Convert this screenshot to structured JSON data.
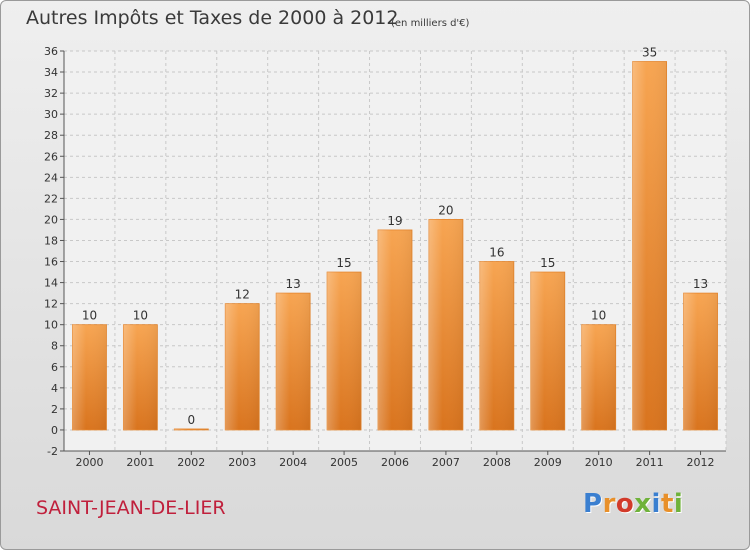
{
  "chart_data": {
    "type": "bar",
    "title": "Autres Impôts et Taxes de 2000 à 2012",
    "subtitle": "(en milliers d'€)",
    "categories": [
      "2000",
      "2001",
      "2002",
      "2003",
      "2004",
      "2005",
      "2006",
      "2007",
      "2008",
      "2009",
      "2010",
      "2011",
      "2012"
    ],
    "values": [
      10,
      10,
      0,
      12,
      13,
      15,
      19,
      20,
      16,
      15,
      10,
      35,
      13
    ],
    "ylim": [
      -2,
      36
    ],
    "yticks": [
      -2,
      0,
      2,
      4,
      6,
      8,
      10,
      12,
      14,
      16,
      18,
      20,
      22,
      24,
      26,
      28,
      30,
      32,
      34,
      36
    ],
    "grid": true,
    "bar_color": "#f0943a"
  },
  "footer": {
    "commune": "SAINT-JEAN-DE-LIER",
    "logo_letters": [
      {
        "ch": "P",
        "color": "#3a7fd0"
      },
      {
        "ch": "r",
        "color": "#e8902a"
      },
      {
        "ch": "o",
        "color": "#d23a2a"
      },
      {
        "ch": "x",
        "color": "#6fb23a"
      },
      {
        "ch": "i",
        "color": "#3a7fd0"
      },
      {
        "ch": "t",
        "color": "#e8902a"
      },
      {
        "ch": "i",
        "color": "#6fb23a"
      }
    ]
  }
}
